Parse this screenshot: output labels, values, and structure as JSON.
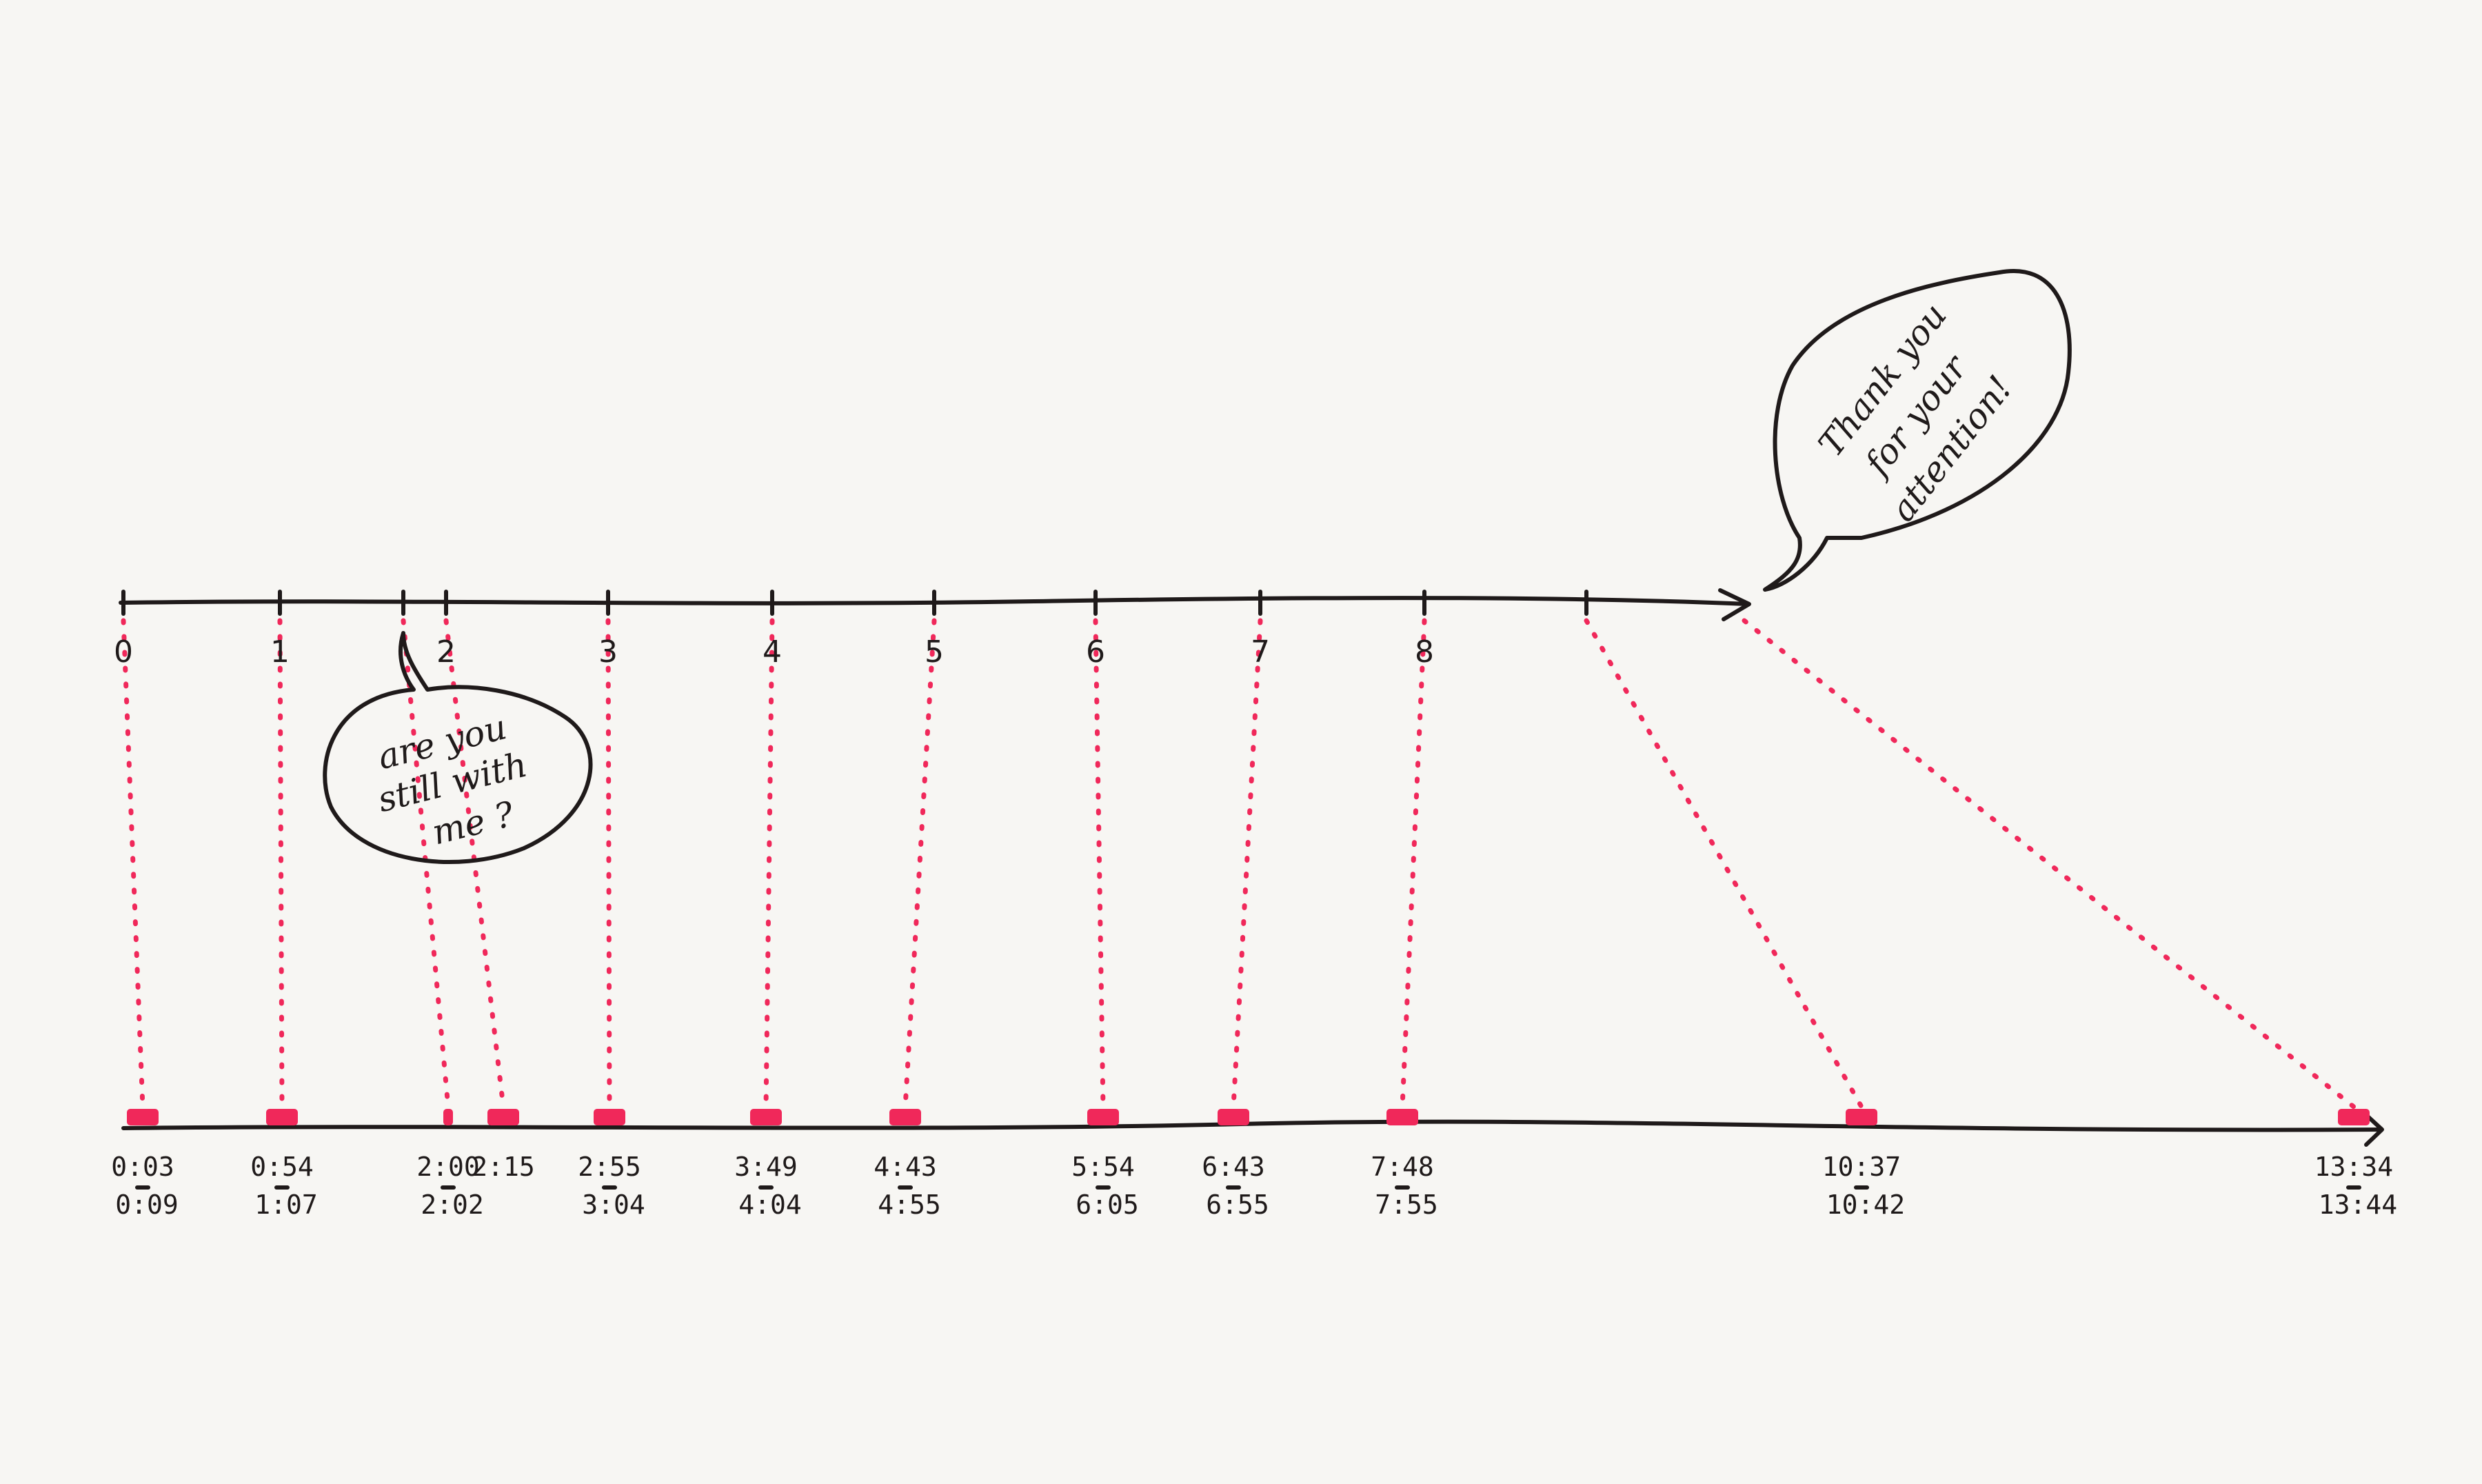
{
  "colors": {
    "ink": "#1f1a1a",
    "marker": "#f0285a",
    "paper": "#f7f6f3"
  },
  "top_axis": {
    "tick_labels": [
      "0",
      "1",
      "",
      "2",
      "3",
      "4",
      "5",
      "6",
      "7",
      "8",
      ""
    ]
  },
  "bottom_axis": {
    "marks": [
      {
        "start": "0:03",
        "end": "0:09"
      },
      {
        "start": "0:54",
        "end": "1:07"
      },
      {
        "start": "2:00",
        "end": "2:02"
      },
      {
        "start": "2:15",
        "end": ""
      },
      {
        "start": "2:55",
        "end": "3:04"
      },
      {
        "start": "3:49",
        "end": "4:04"
      },
      {
        "start": "4:43",
        "end": "4:55"
      },
      {
        "start": "5:54",
        "end": "6:05"
      },
      {
        "start": "6:43",
        "end": "6:55"
      },
      {
        "start": "7:48",
        "end": "7:55"
      },
      {
        "start": "10:37",
        "end": "10:42"
      },
      {
        "start": "13:34",
        "end": "13:44"
      }
    ]
  },
  "bubbles": {
    "still_with_me": [
      "are you",
      "still with",
      "me ?"
    ],
    "thank_you": [
      "Thank you",
      "for your",
      "attention!"
    ]
  }
}
